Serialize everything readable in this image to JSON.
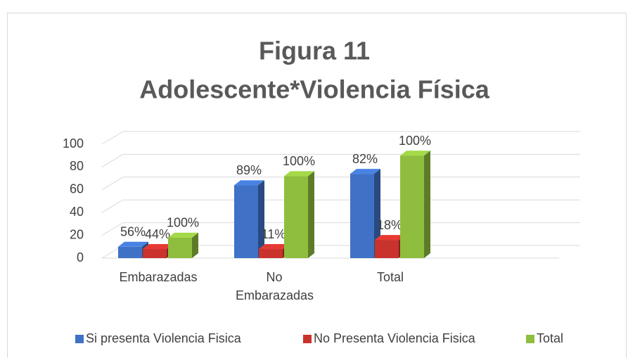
{
  "chart_data": {
    "type": "bar3d",
    "title": "Figura 11",
    "subtitle": "Adolescente*Violencia Física",
    "categories": [
      "Embarazadas",
      "No Embarazadas",
      "Total"
    ],
    "series": [
      {
        "name": "Si presenta Violencia Fisica",
        "color": "#3f72c6",
        "values": [
          10,
          64,
          74
        ],
        "value_labels": [
          "56%",
          "89%",
          "82%"
        ]
      },
      {
        "name": "No Presenta Violencia Fisica",
        "color": "#c9322d",
        "values": [
          8,
          8,
          16
        ],
        "value_labels": [
          "44%",
          "11%",
          "18%"
        ]
      },
      {
        "name": "Total",
        "color": "#8fbe3e",
        "values": [
          18,
          72,
          90
        ],
        "value_labels": [
          "100%",
          "100%",
          "100%"
        ]
      }
    ],
    "ylim": [
      0,
      100
    ],
    "yticks": [
      0,
      20,
      40,
      60,
      80,
      100
    ],
    "grid": true,
    "legend": "bottom"
  }
}
